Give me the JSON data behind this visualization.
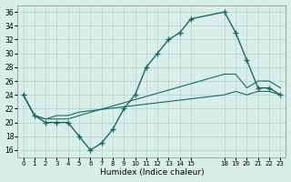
{
  "xlabel": "Humidex (Indice chaleur)",
  "ylabel": "",
  "background_color": "#d8eee8",
  "grid_color": "#b0d4cc",
  "line_color": "#1a6b5e",
  "xlim": [
    -0.5,
    23.5
  ],
  "ylim": [
    15,
    37
  ],
  "yticks": [
    16,
    18,
    20,
    22,
    24,
    26,
    28,
    30,
    32,
    34,
    36
  ],
  "xtick_positions": [
    0,
    1,
    2,
    3,
    4,
    5,
    6,
    7,
    8,
    9,
    10,
    11,
    12,
    13,
    14,
    15,
    18,
    19,
    20,
    21,
    22,
    23
  ],
  "xtick_labels": [
    "0",
    "1",
    "2",
    "3",
    "4",
    "5",
    "6",
    "7",
    "8",
    "9",
    "10",
    "11",
    "12",
    "13",
    "14",
    "15",
    "18",
    "19",
    "20",
    "21",
    "22",
    "23"
  ],
  "line1_x": [
    0,
    1,
    2,
    3,
    4,
    5,
    6,
    7,
    8,
    9,
    10,
    11,
    12,
    13,
    14,
    15,
    18,
    19,
    20,
    21,
    22,
    23
  ],
  "line1_y": [
    24,
    21,
    20,
    20,
    20,
    18,
    16,
    17,
    19,
    22,
    24,
    28,
    30,
    32,
    33,
    35,
    36,
    33,
    29,
    25,
    25,
    24
  ],
  "line2_x": [
    0,
    1,
    2,
    3,
    4,
    5,
    18,
    19,
    20,
    21,
    22,
    23
  ],
  "line2_y": [
    24,
    21,
    20.5,
    20.5,
    20.5,
    21,
    27,
    27,
    25,
    26,
    26,
    25
  ],
  "line3_x": [
    0,
    1,
    2,
    3,
    4,
    5,
    18,
    19,
    20,
    21,
    22,
    23
  ],
  "line3_y": [
    24,
    21,
    20.5,
    21,
    21,
    21.5,
    24,
    24.5,
    24,
    24.5,
    24.5,
    24
  ]
}
